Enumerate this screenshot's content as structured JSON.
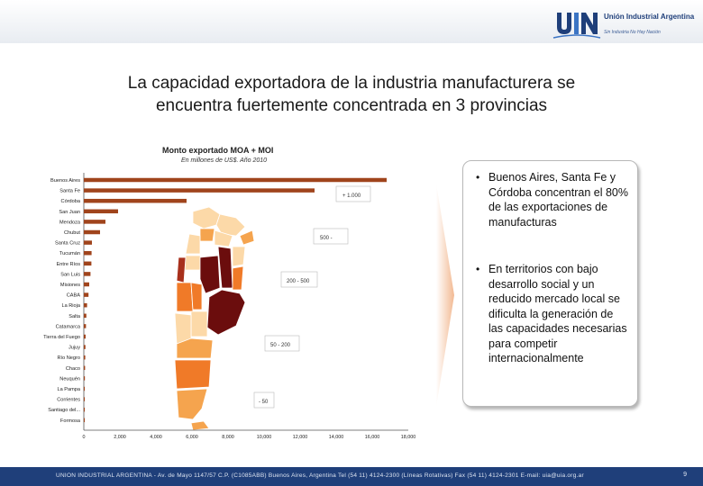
{
  "header": {
    "logo_mark": "UIA",
    "logo_name": "Unión Industrial Argentina",
    "logo_slogan": "Sin Industria No Hay Nación"
  },
  "slide": {
    "title_line1": "La capacidad exportadora de la industria manufacturera se",
    "title_line2": "encuentra fuertemente concentrada en 3 provincias"
  },
  "chart_data": {
    "type": "bar",
    "orientation": "horizontal",
    "title": "Monto exportado MOA + MOI",
    "subtitle": "En millones de US$. Año 2010",
    "categories": [
      "Buenos Aires",
      "Santa Fe",
      "Córdoba",
      "San Juan",
      "Mendoza",
      "Chubut",
      "Santa Cruz",
      "Tucumán",
      "Entre Ríos",
      "San Luis",
      "Misiones",
      "CABA",
      "La Rioja",
      "Salta",
      "Catamarca",
      "Tierra del Fuego",
      "Jujuy",
      "Río Negro",
      "Chaco",
      "Neuquén",
      "La Pampa",
      "Corrientes",
      "Santiago del...",
      "Formosa"
    ],
    "values": [
      16800,
      12800,
      5700,
      1900,
      1200,
      900,
      450,
      430,
      420,
      370,
      300,
      260,
      180,
      140,
      120,
      100,
      90,
      80,
      70,
      60,
      50,
      40,
      30,
      20
    ],
    "xlim": [
      0,
      18000
    ],
    "xticks": [
      "0",
      "2,000",
      "4,000",
      "6,000",
      "8,000",
      "10,000",
      "12,000",
      "14,000",
      "16,000",
      "18,000"
    ],
    "bar_color": "#a0441c",
    "grid": false,
    "map_legend": [
      "+ 1.000",
      "500 -",
      "200 - 500",
      "50 - 200",
      "- 50"
    ],
    "map_colors": {
      "very_high": "#6b0d0d",
      "high": "#a8301c",
      "medium": "#f07a28",
      "low": "#f5a44e",
      "very_low": "#fcd9a8"
    }
  },
  "bullets": [
    "Buenos Aires, Santa Fe y Córdoba concentran el 80% de las exportaciones de manufacturas",
    "En territorios con bajo desarrollo social y un reducido mercado local se dificulta la generación de las capacidades necesarias para competir internacionalmente"
  ],
  "footer": {
    "text": "UNION INDUSTRIAL ARGENTINA - Av. de Mayo 1147/57 C.P. (C1085ABB) Buenos Aires, Argentina Tel (54 11) 4124-2300 (Líneas Rotativas) Fax (54 11) 4124-2301   E-mail: uia@uia.org.ar",
    "page": "9"
  }
}
